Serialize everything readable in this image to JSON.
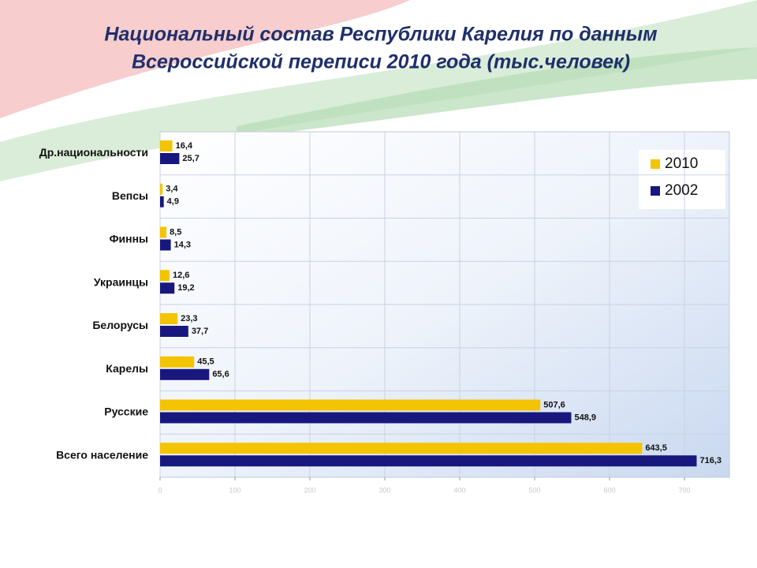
{
  "chart_data": {
    "type": "hbar",
    "title": [
      "Национальный состав Республики Карелия по данным",
      "Всероссийской переписи 2010 года (тыс.человек)"
    ],
    "categories": [
      "Др.национальности",
      "Вепсы",
      "Финны",
      "Украинцы",
      "Белорусы",
      "Карелы",
      "Русские",
      "Всего население"
    ],
    "series": [
      {
        "name": "2010",
        "color": "#f5c400",
        "values": [
          16.4,
          3.4,
          8.5,
          12.6,
          23.3,
          45.5,
          507.6,
          643.5
        ],
        "value_labels": [
          "16,4",
          "3,4",
          "8,5",
          "12,6",
          "23,3",
          "45,5",
          "507,6",
          "643,5"
        ]
      },
      {
        "name": "2002",
        "color": "#17177e",
        "values": [
          25.7,
          4.9,
          14.3,
          19.2,
          37.7,
          65.6,
          548.9,
          716.3
        ],
        "value_labels": [
          "25,7",
          "4,9",
          "14,3",
          "19,2",
          "37,7",
          "65,6",
          "548,9",
          "716,3"
        ]
      }
    ],
    "xlim": [
      0,
      760
    ],
    "xticks": [
      0,
      100,
      200,
      300,
      400,
      500,
      600,
      700
    ],
    "grid": true,
    "legend": "top-right"
  }
}
